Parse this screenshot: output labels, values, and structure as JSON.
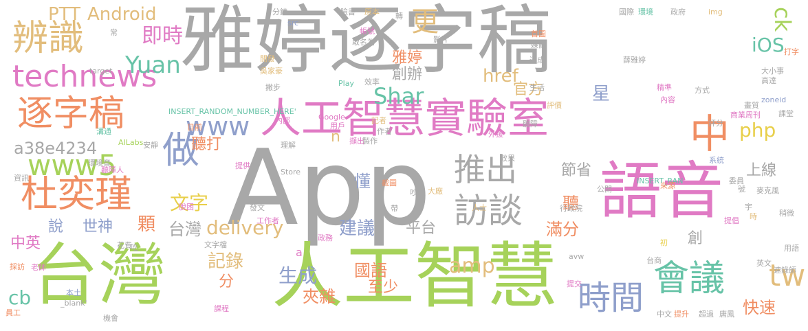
{
  "cloud": {
    "palette": {
      "gray": "#a8a8a8",
      "lime": "#a6d25a",
      "pink": "#e07ac4",
      "orange": "#f08e63",
      "tan": "#e2bd7c",
      "teal": "#67c3a7",
      "blue": "#8f9fcb",
      "yellow": "#e8cf4a"
    },
    "words": [
      {
        "text": "雅婷逐字稿",
        "color": "#a8a8a8"
      },
      {
        "text": "App",
        "color": "#a8a8a8"
      },
      {
        "text": "台灣",
        "color": "#a6d25a"
      },
      {
        "text": "人工智慧",
        "color": "#a6d25a"
      },
      {
        "text": "語音",
        "color": "#e07ac4"
      },
      {
        "text": "人工智慧實驗室",
        "color": "#e07ac4"
      },
      {
        "text": "technews",
        "color": "#e07ac4"
      },
      {
        "text": "辨識",
        "color": "#e2bd7c"
      },
      {
        "text": "逐字稿",
        "color": "#f08e63"
      },
      {
        "text": "杜奕瑾",
        "color": "#f08e63"
      },
      {
        "text": "www5",
        "color": "#a6d25a"
      },
      {
        "text": "www",
        "color": "#8f9fcb"
      },
      {
        "text": "做",
        "color": "#8f9fcb"
      },
      {
        "text": "中",
        "color": "#f08e63"
      },
      {
        "text": "會議",
        "color": "#67c3a7"
      },
      {
        "text": "訪談",
        "color": "#a8a8a8"
      },
      {
        "text": "推出",
        "color": "#a8a8a8"
      },
      {
        "text": "時間",
        "color": "#8f9fcb"
      },
      {
        "text": "即時",
        "color": "#e07ac4"
      },
      {
        "text": "Yuan",
        "color": "#67c3a7"
      },
      {
        "text": "Android",
        "color": "#e2bd7c"
      },
      {
        "text": "PTT",
        "color": "#e2bd7c"
      },
      {
        "text": "Shar",
        "color": "#67c3a7"
      },
      {
        "text": "更",
        "color": "#e2bd7c"
      },
      {
        "text": "ck",
        "color": "#a6d25a"
      },
      {
        "text": "iOS",
        "color": "#67c3a7"
      },
      {
        "text": "href",
        "color": "#e2bd7c"
      },
      {
        "text": "php",
        "color": "#e8cf4a"
      },
      {
        "text": "tw",
        "color": "#e2bd7c"
      },
      {
        "text": "delivery",
        "color": "#e2bd7c"
      },
      {
        "text": "amp",
        "color": "#e2bd7c"
      },
      {
        "text": "a38e4234",
        "color": "#a8a8a8"
      },
      {
        "text": "cb",
        "color": "#67c3a7"
      },
      {
        "text": "文字",
        "color": "#e8cf4a"
      },
      {
        "text": "聽打",
        "color": "#f08e63"
      },
      {
        "text": "雅婷",
        "color": "#f08e63"
      },
      {
        "text": "創辦",
        "color": "#a8a8a8"
      },
      {
        "text": "官方",
        "color": "#e2bd7c"
      },
      {
        "text": "星",
        "color": "#8f9fcb"
      },
      {
        "text": "上線",
        "color": "#a8a8a8"
      },
      {
        "text": "節省",
        "color": "#a8a8a8"
      },
      {
        "text": "平台",
        "color": "#a8a8a8"
      },
      {
        "text": "建議",
        "color": "#8f9fcb"
      },
      {
        "text": "滿分",
        "color": "#f08e63"
      },
      {
        "text": "懂",
        "color": "#8f9fcb"
      },
      {
        "text": "聽",
        "color": "#f08e63"
      },
      {
        "text": "顆",
        "color": "#f08e63"
      },
      {
        "text": "台灣",
        "color": "#a8a8a8"
      },
      {
        "text": "世神",
        "color": "#8f9fcb"
      },
      {
        "text": "說",
        "color": "#8f9fcb"
      },
      {
        "text": "中英",
        "color": "#e07ac4"
      },
      {
        "text": "記錄",
        "color": "#e2bd7c"
      },
      {
        "text": "生成",
        "color": "#8f9fcb"
      },
      {
        "text": "分",
        "color": "#f08e63"
      },
      {
        "text": "國語",
        "color": "#f08e63"
      },
      {
        "text": "夾雜",
        "color": "#f08e63"
      },
      {
        "text": "至少",
        "color": "#f08e63"
      },
      {
        "text": "快速",
        "color": "#f08e63"
      },
      {
        "text": "創",
        "color": "#a8a8a8"
      },
      {
        "text": "n",
        "color": "#e2bd7c"
      },
      {
        "text": "a",
        "color": "#e07ac4"
      },
      {
        "text": "分鐘",
        "color": "#a8a8a8"
      },
      {
        "text": "src",
        "color": "#8f9fcb"
      },
      {
        "text": "臉書",
        "color": "#a8a8a8"
      },
      {
        "text": "原本",
        "color": "#e2bd7c"
      },
      {
        "text": "轉",
        "color": "#a8a8a8"
      },
      {
        "text": "國際",
        "color": "#a8a8a8"
      },
      {
        "text": "環境",
        "color": "#67c3a7"
      },
      {
        "text": "政府",
        "color": "#a8a8a8"
      },
      {
        "text": "img",
        "color": "#e2bd7c"
      },
      {
        "text": "帳號",
        "color": "#e07ac4"
      },
      {
        "text": "取名為",
        "color": "#a8a8a8"
      },
      {
        "text": "影片",
        "color": "#a8a8a8"
      },
      {
        "text": "首圖",
        "color": "#f08e63"
      },
      {
        "text": "媒體",
        "color": "#a8a8a8"
      },
      {
        "text": "達成",
        "color": "#a8a8a8"
      },
      {
        "text": "薛雅婷",
        "color": "#a8a8a8"
      },
      {
        "text": "打字",
        "color": "#f08e63"
      },
      {
        "text": "常",
        "color": "#a8a8a8"
      },
      {
        "text": "開發",
        "color": "#e2bd7c"
      },
      {
        "text": "target",
        "color": "#a8a8a8"
      },
      {
        "text": "吳家豪",
        "color": "#e2bd7c"
      },
      {
        "text": "Play",
        "color": "#67c3a7"
      },
      {
        "text": "效率",
        "color": "#a8a8a8"
      },
      {
        "text": "大小事",
        "color": "#a8a8a8"
      },
      {
        "text": "高達",
        "color": "#a8a8a8"
      },
      {
        "text": "撇步",
        "color": "#a8a8a8"
      },
      {
        "text": "生活",
        "color": "#a8a8a8"
      },
      {
        "text": "精準",
        "color": "#e07ac4"
      },
      {
        "text": "方式",
        "color": "#a8a8a8"
      },
      {
        "text": "INSERT_RANDOM_NUMBER_HERE'",
        "color": "#67c3a7"
      },
      {
        "text": "評價",
        "color": "#e2bd7c"
      },
      {
        "text": "內容",
        "color": "#e07ac4"
      },
      {
        "text": "zoneid",
        "color": "#8f9fcb"
      },
      {
        "text": "畫質",
        "color": "#a8a8a8"
      },
      {
        "text": "商業周刊",
        "color": "#e07ac4"
      },
      {
        "text": "課堂",
        "color": "#a8a8a8"
      },
      {
        "text": "Google",
        "color": "#e07ac4"
      },
      {
        "text": "用戶",
        "color": "#e07ac4"
      },
      {
        "text": "記者",
        "color": "#e2bd7c"
      },
      {
        "text": "作者",
        "color": "#a8a8a8"
      },
      {
        "text": "聽障",
        "color": "#a8a8a8"
      },
      {
        "text": "評分",
        "color": "#a8a8a8"
      },
      {
        "text": "內部",
        "color": "#e07ac4"
      },
      {
        "text": "目前",
        "color": "#f08e63"
      },
      {
        "text": "溝通",
        "color": "#67c3a7"
      },
      {
        "text": "AILabs",
        "color": "#a6d25a"
      },
      {
        "text": "安靜",
        "color": "#a8a8a8"
      },
      {
        "text": "理解",
        "color": "#a8a8a8"
      },
      {
        "text": "擷出",
        "color": "#e07ac4"
      },
      {
        "text": "製作",
        "color": "#a8a8a8"
      },
      {
        "text": "外援",
        "color": "#e07ac4"
      },
      {
        "text": "環境音",
        "color": "#a8a8a8"
      },
      {
        "text": "聽障人",
        "color": "#e07ac4"
      },
      {
        "text": "提供",
        "color": "#e07ac4"
      },
      {
        "text": "效果",
        "color": "#a8a8a8"
      },
      {
        "text": "Store",
        "color": "#a8a8a8"
      },
      {
        "text": "系統",
        "color": "#8f9fcb"
      },
      {
        "text": "INSERT_RAN",
        "color": "#67c3a7"
      },
      {
        "text": "來源",
        "color": "#f08e63"
      },
      {
        "text": "公開",
        "color": "#a8a8a8"
      },
      {
        "text": "委員",
        "color": "#a8a8a8"
      },
      {
        "text": "截圖",
        "color": "#f08e63"
      },
      {
        "text": "大廠",
        "color": "#e2bd7c"
      },
      {
        "text": "號",
        "color": "#a8a8a8"
      },
      {
        "text": "麥克風",
        "color": "#a8a8a8"
      },
      {
        "text": "資訊",
        "color": "#a8a8a8"
      },
      {
        "text": "脫困",
        "color": "#e07ac4"
      },
      {
        "text": "人士",
        "color": "#e2bd7c"
      },
      {
        "text": "行政院",
        "color": "#a8a8a8"
      },
      {
        "text": "宇",
        "color": "#a8a8a8"
      },
      {
        "text": "吵雜",
        "color": "#a8a8a8"
      },
      {
        "text": "時",
        "color": "#e2bd7c"
      },
      {
        "text": "稍微",
        "color": "#a8a8a8"
      },
      {
        "text": "發文",
        "color": "#a8a8a8"
      },
      {
        "text": "帶",
        "color": "#a8a8a8"
      },
      {
        "text": "提倡",
        "color": "#e07ac4"
      },
      {
        "text": "工作者",
        "color": "#e07ac4"
      },
      {
        "text": "政務",
        "color": "#e07ac4"
      },
      {
        "text": "文字檔",
        "color": "#a8a8a8"
      },
      {
        "text": "初",
        "color": "#e8cf4a"
      },
      {
        "text": "花費",
        "color": "#a8a8a8"
      },
      {
        "text": "吃",
        "color": "#a8a8a8"
      },
      {
        "text": "avw",
        "color": "#a8a8a8"
      },
      {
        "text": "用語",
        "color": "#a8a8a8"
      },
      {
        "text": "採訪",
        "color": "#f08e63"
      },
      {
        "text": "老師",
        "color": "#e07ac4"
      },
      {
        "text": "台商",
        "color": "#a8a8a8"
      },
      {
        "text": "英文",
        "color": "#a8a8a8"
      },
      {
        "text": "速錄師",
        "color": "#a8a8a8"
      },
      {
        "text": "本土",
        "color": "#8f9fcb"
      },
      {
        "text": "_blank'",
        "color": "#a8a8a8"
      },
      {
        "text": "課程",
        "color": "#e07ac4"
      },
      {
        "text": "提交",
        "color": "#e07ac4"
      },
      {
        "text": "員工",
        "color": "#f08e63"
      },
      {
        "text": "機會",
        "color": "#a8a8a8"
      },
      {
        "text": "中文",
        "color": "#a8a8a8"
      },
      {
        "text": "提升",
        "color": "#f08e63"
      },
      {
        "text": "超過",
        "color": "#a8a8a8"
      },
      {
        "text": "唐鳳",
        "color": "#a8a8a8"
      }
    ]
  }
}
